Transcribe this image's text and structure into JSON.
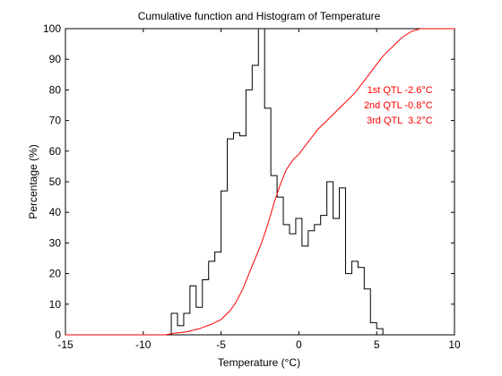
{
  "chart_data": {
    "type": "line",
    "title": "Cumulative function and Histogram of Temperature",
    "xlabel": "Temperature (°C)",
    "ylabel": "Percentage (%)",
    "xlim": [
      -15,
      10
    ],
    "ylim": [
      0,
      100
    ],
    "x_ticks": [
      -15,
      -10,
      -5,
      0,
      5,
      10
    ],
    "x_tick_labels": [
      "-15",
      "-10",
      "-5",
      "0",
      "5",
      "10"
    ],
    "y_ticks": [
      0,
      10,
      20,
      30,
      40,
      50,
      60,
      70,
      80,
      90,
      100
    ],
    "y_tick_labels": [
      "0",
      "10",
      "20",
      "30",
      "40",
      "50",
      "60",
      "70",
      "80",
      "90",
      "100"
    ],
    "grid": false,
    "series": [
      {
        "color": "#000000",
        "style": "step",
        "x": [
          -15,
          -8.2,
          -8.2,
          -7.8,
          -7.8,
          -7.4,
          -7.4,
          -7.0,
          -7.0,
          -6.6,
          -6.6,
          -6.2,
          -6.2,
          -5.8,
          -5.8,
          -5.4,
          -5.4,
          -5.0,
          -5.0,
          -4.6,
          -4.6,
          -4.2,
          -4.2,
          -3.8,
          -3.8,
          -3.4,
          -3.4,
          -3.0,
          -3.0,
          -2.6,
          -2.6,
          -2.2,
          -2.2,
          -1.8,
          -1.8,
          -1.4,
          -1.4,
          -1.0,
          -1.0,
          -0.6,
          -0.6,
          -0.2,
          -0.2,
          0.2,
          0.2,
          0.6,
          0.6,
          1.0,
          1.0,
          1.4,
          1.4,
          1.8,
          1.8,
          2.2,
          2.2,
          2.6,
          2.6,
          3.0,
          3.0,
          3.4,
          3.4,
          3.8,
          3.8,
          4.2,
          4.2,
          4.6,
          4.6,
          5.0,
          5.0,
          5.4,
          5.4,
          5.8,
          5.8,
          6.2,
          6.2,
          6.6,
          6.6,
          7.0,
          7.0,
          7.4,
          7.4,
          7.8,
          7.8,
          8.2,
          8.2,
          8.6,
          8.6,
          9.0,
          9.0,
          10
        ],
        "y": [
          0,
          0,
          7,
          7,
          3,
          3,
          7,
          7,
          16,
          16,
          9,
          9,
          18,
          18,
          24,
          24,
          27,
          27,
          47,
          47,
          64,
          64,
          66,
          66,
          65,
          65,
          80,
          80,
          88,
          88,
          100,
          100,
          74,
          74,
          52,
          52,
          45,
          45,
          36,
          36,
          33,
          33,
          38,
          38,
          29,
          29,
          34,
          34,
          36,
          36,
          39,
          39,
          50,
          50,
          38,
          38,
          48,
          48,
          20,
          20,
          24,
          24,
          22,
          22,
          15,
          15,
          4,
          4,
          2,
          2,
          0,
          0,
          0,
          0,
          0,
          0,
          0,
          0,
          0,
          0,
          0,
          0,
          0,
          0,
          0,
          0,
          0,
          0,
          0,
          0
        ]
      },
      {
        "color": "#ff0000",
        "style": "line",
        "x": [
          -15,
          -8.6,
          -8.0,
          -7.2,
          -6.4,
          -5.6,
          -5.0,
          -4.4,
          -4.0,
          -3.6,
          -3.2,
          -2.8,
          -2.4,
          -2.0,
          -1.6,
          -1.2,
          -0.8,
          -0.4,
          0.0,
          0.6,
          1.2,
          1.8,
          2.4,
          3.0,
          3.6,
          4.2,
          4.8,
          5.4,
          6.0,
          6.6,
          7.2,
          7.8,
          8.4,
          9.0,
          10
        ],
        "y": [
          0,
          0,
          0.5,
          1,
          2,
          3.5,
          5,
          8,
          11,
          15,
          20,
          25,
          30,
          36,
          43,
          49,
          54,
          57,
          59,
          63,
          67,
          70,
          73,
          76,
          79,
          83,
          87,
          91,
          94,
          97,
          99,
          100,
          100,
          100,
          100
        ]
      }
    ],
    "annotations": [
      {
        "text": "1st QTL -2.6°C",
        "x": 8.6,
        "y": 79,
        "color": "#ff0000"
      },
      {
        "text": "2nd QTL -0.8°C",
        "x": 8.6,
        "y": 74,
        "color": "#ff0000"
      },
      {
        "text": "3rd QTL  3.2°C",
        "x": 8.6,
        "y": 69,
        "color": "#ff0000"
      }
    ]
  }
}
